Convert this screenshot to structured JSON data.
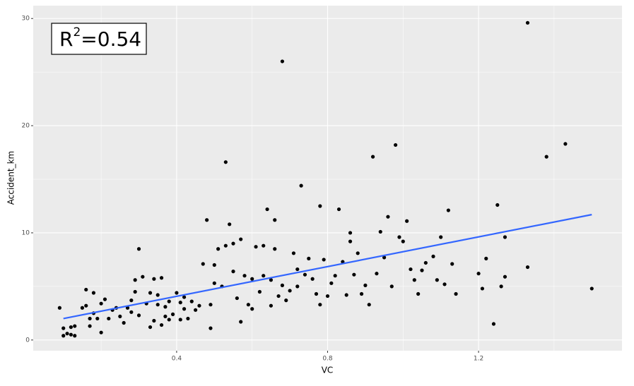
{
  "chart_data": {
    "type": "scatter",
    "xlabel": "VC",
    "ylabel": "Accident_km",
    "annotation": [
      "R",
      "2",
      "=0.54"
    ],
    "color": "#000000",
    "xlim": [
      0.02,
      1.58
    ],
    "ylim": [
      -1,
      31.2
    ],
    "xticks": [
      0.4,
      0.8,
      1.2
    ],
    "yticks": [
      0,
      10,
      20,
      30
    ],
    "xminor": [
      0.2,
      0.6,
      1.0,
      1.4
    ],
    "yminor": [
      5,
      15,
      25
    ],
    "grid": true,
    "trend": {
      "x": [
        0.1,
        1.5
      ],
      "y": [
        2.0,
        11.7
      ],
      "color": "#3366ff"
    },
    "x": [
      0.09,
      0.1,
      0.1,
      0.11,
      0.12,
      0.12,
      0.13,
      0.13,
      0.15,
      0.16,
      0.16,
      0.17,
      0.17,
      0.18,
      0.18,
      0.19,
      0.2,
      0.2,
      0.21,
      0.22,
      0.23,
      0.24,
      0.25,
      0.26,
      0.27,
      0.28,
      0.28,
      0.29,
      0.29,
      0.3,
      0.3,
      0.31,
      0.32,
      0.33,
      0.33,
      0.34,
      0.34,
      0.35,
      0.35,
      0.36,
      0.36,
      0.37,
      0.37,
      0.38,
      0.38,
      0.39,
      0.4,
      0.41,
      0.41,
      0.42,
      0.42,
      0.43,
      0.44,
      0.45,
      0.46,
      0.47,
      0.48,
      0.49,
      0.49,
      0.5,
      0.5,
      0.51,
      0.52,
      0.53,
      0.53,
      0.54,
      0.55,
      0.55,
      0.56,
      0.57,
      0.57,
      0.58,
      0.59,
      0.6,
      0.6,
      0.61,
      0.62,
      0.63,
      0.63,
      0.64,
      0.65,
      0.65,
      0.66,
      0.66,
      0.67,
      0.68,
      0.68,
      0.69,
      0.7,
      0.71,
      0.72,
      0.72,
      0.73,
      0.74,
      0.75,
      0.76,
      0.77,
      0.78,
      0.78,
      0.79,
      0.8,
      0.81,
      0.82,
      0.83,
      0.84,
      0.85,
      0.86,
      0.86,
      0.87,
      0.88,
      0.89,
      0.9,
      0.91,
      0.92,
      0.93,
      0.94,
      0.95,
      0.96,
      0.97,
      0.98,
      0.99,
      1.0,
      1.01,
      1.02,
      1.03,
      1.04,
      1.05,
      1.06,
      1.08,
      1.09,
      1.1,
      1.11,
      1.12,
      1.13,
      1.14,
      1.2,
      1.21,
      1.22,
      1.24,
      1.25,
      1.26,
      1.27,
      1.27,
      1.33,
      1.33,
      1.38,
      1.43,
      1.5
    ],
    "values": [
      3.0,
      1.1,
      0.4,
      0.6,
      1.2,
      0.5,
      1.3,
      0.4,
      3.0,
      4.7,
      3.2,
      2.0,
      1.3,
      4.4,
      2.5,
      2.0,
      3.4,
      0.7,
      3.8,
      2.0,
      2.8,
      3.0,
      2.2,
      1.6,
      3.0,
      3.7,
      2.6,
      4.5,
      5.6,
      8.5,
      2.3,
      5.9,
      3.4,
      1.2,
      4.4,
      5.7,
      1.8,
      3.3,
      4.2,
      1.4,
      5.8,
      3.1,
      2.2,
      1.9,
      3.6,
      2.4,
      4.4,
      3.5,
      1.9,
      2.9,
      4.0,
      2.0,
      3.6,
      2.8,
      3.2,
      7.1,
      11.2,
      3.3,
      1.1,
      7.0,
      5.3,
      8.5,
      5.0,
      16.6,
      8.8,
      10.8,
      9.0,
      6.4,
      3.9,
      9.4,
      1.7,
      6.0,
      3.3,
      2.9,
      5.7,
      8.7,
      4.5,
      6.0,
      8.8,
      12.2,
      5.6,
      3.2,
      8.5,
      11.2,
      4.1,
      26.0,
      5.1,
      3.7,
      4.6,
      8.1,
      5.0,
      6.6,
      14.4,
      6.1,
      7.6,
      5.7,
      4.3,
      12.5,
      3.3,
      7.5,
      4.1,
      5.3,
      6.0,
      12.2,
      7.3,
      4.2,
      10.0,
      9.2,
      6.1,
      8.1,
      4.3,
      5.1,
      3.3,
      17.1,
      6.2,
      10.1,
      7.7,
      11.5,
      5.0,
      18.2,
      9.6,
      9.2,
      11.1,
      6.6,
      5.6,
      4.3,
      6.5,
      7.2,
      7.8,
      5.6,
      9.6,
      5.2,
      12.1,
      7.1,
      4.3,
      6.2,
      4.8,
      7.6,
      1.5,
      12.6,
      5.0,
      9.6,
      5.9,
      29.6,
      6.8,
      17.1,
      18.3,
      4.8
    ]
  }
}
